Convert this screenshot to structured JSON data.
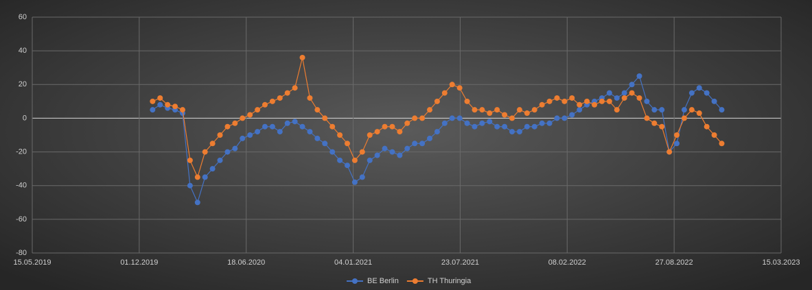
{
  "chart_data": {
    "type": "line",
    "x": [
      "26.12.2019",
      "09.01.2020",
      "23.01.2020",
      "06.02.2020",
      "20.02.2020",
      "05.03.2020",
      "19.03.2020",
      "02.04.2020",
      "16.04.2020",
      "30.04.2020",
      "14.05.2020",
      "28.05.2020",
      "11.06.2020",
      "25.06.2020",
      "09.07.2020",
      "23.07.2020",
      "06.08.2020",
      "20.08.2020",
      "03.09.2020",
      "17.09.2020",
      "01.10.2020",
      "15.10.2020",
      "29.10.2020",
      "12.11.2020",
      "26.11.2020",
      "10.12.2020",
      "24.12.2020",
      "07.01.2021",
      "21.01.2021",
      "04.02.2021",
      "18.02.2021",
      "04.03.2021",
      "18.03.2021",
      "01.04.2021",
      "15.04.2021",
      "29.04.2021",
      "13.05.2021",
      "27.05.2021",
      "10.06.2021",
      "24.06.2021",
      "08.07.2021",
      "22.07.2021",
      "05.08.2021",
      "19.08.2021",
      "02.09.2021",
      "16.09.2021",
      "30.09.2021",
      "14.10.2021",
      "28.10.2021",
      "11.11.2021",
      "25.11.2021",
      "09.12.2021",
      "23.12.2021",
      "06.01.2022",
      "20.01.2022",
      "03.02.2022",
      "17.02.2022",
      "03.03.2022",
      "17.03.2022",
      "31.03.2022",
      "14.04.2022",
      "28.04.2022",
      "12.05.2022",
      "26.05.2022",
      "09.06.2022",
      "23.06.2022",
      "07.07.2022",
      "21.07.2022",
      "04.08.2022",
      "18.08.2022",
      "01.09.2022",
      "15.09.2022",
      "29.09.2022",
      "13.10.2022",
      "27.10.2022",
      "10.11.2022",
      "24.11.2022"
    ],
    "series": [
      {
        "name": "BE Berlin",
        "color": "#4472c4",
        "values": [
          5,
          8,
          6,
          5,
          3,
          -40,
          -50,
          -35,
          -30,
          -25,
          -20,
          -18,
          -12,
          -10,
          -8,
          -5,
          -5,
          -8,
          -3,
          -2,
          -5,
          -8,
          -12,
          -15,
          -20,
          -25,
          -28,
          -38,
          -35,
          -25,
          -22,
          -18,
          -20,
          -22,
          -18,
          -15,
          -15,
          -12,
          -8,
          -3,
          0,
          0,
          -3,
          -5,
          -3,
          -2,
          -5,
          -5,
          -8,
          -8,
          -5,
          -5,
          -3,
          -3,
          0,
          0,
          2,
          5,
          8,
          10,
          12,
          15,
          12,
          15,
          20,
          25,
          10,
          5,
          5,
          -20,
          -15,
          5,
          15,
          18,
          15,
          10,
          5
        ]
      },
      {
        "name": "TH Thuringia",
        "color": "#ed7d31",
        "values": [
          10,
          12,
          8,
          7,
          5,
          -25,
          -35,
          -20,
          -15,
          -10,
          -5,
          -3,
          0,
          2,
          5,
          8,
          10,
          12,
          15,
          18,
          36,
          12,
          5,
          0,
          -5,
          -10,
          -15,
          -25,
          -20,
          -10,
          -8,
          -5,
          -5,
          -8,
          -3,
          0,
          0,
          5,
          10,
          15,
          20,
          18,
          10,
          5,
          5,
          3,
          5,
          2,
          0,
          5,
          3,
          5,
          8,
          10,
          12,
          10,
          12,
          8,
          10,
          8,
          10,
          10,
          5,
          12,
          15,
          12,
          0,
          -3,
          -5,
          -20,
          -10,
          0,
          5,
          3,
          -5,
          -10,
          -15
        ]
      }
    ],
    "xlim": [
      "15.05.2019",
      "15.03.2023"
    ],
    "xticks": [
      "15.05.2019",
      "01.12.2019",
      "18.06.2020",
      "04.01.2021",
      "23.07.2021",
      "08.02.2022",
      "27.08.2022",
      "15.03.2023"
    ],
    "ylim": [
      -80,
      60
    ],
    "yticks": [
      -80,
      -60,
      -40,
      -20,
      0,
      20,
      40,
      60
    ],
    "grid": true,
    "legend": "bottom"
  }
}
